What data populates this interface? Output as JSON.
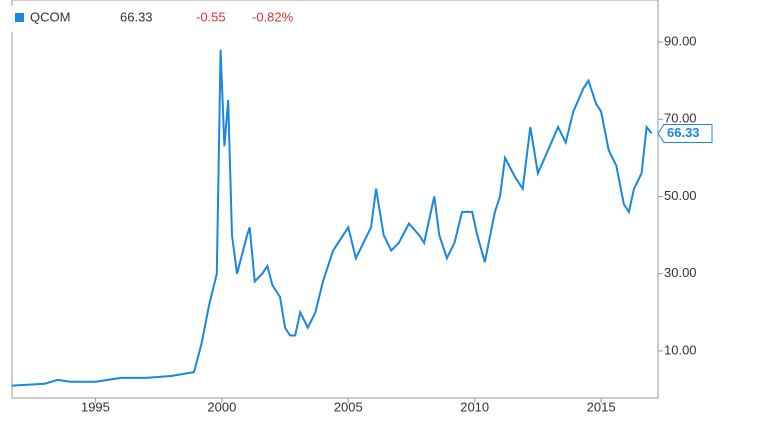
{
  "chart_data": {
    "type": "line",
    "quote": {
      "symbol": "QCOM",
      "price": 66.33,
      "change": -0.55,
      "change_pct": {
        "value": -0.82,
        "label": "-0.82%"
      }
    },
    "x": [
      1991.7,
      1993,
      1993.5,
      1994,
      1995,
      1996,
      1997,
      1998,
      1998.9,
      1999.2,
      1999.5,
      1999.8,
      1999.95,
      2000.1,
      2000.25,
      2000.4,
      2000.6,
      2000.8,
      2001.0,
      2001.1,
      2001.3,
      2001.6,
      2001.8,
      2002.0,
      2002.3,
      2002.5,
      2002.7,
      2002.9,
      2003.1,
      2003.4,
      2003.7,
      2004.0,
      2004.4,
      2004.8,
      2005.0,
      2005.3,
      2005.6,
      2005.9,
      2006.1,
      2006.4,
      2006.7,
      2007.0,
      2007.4,
      2007.8,
      2008.0,
      2008.4,
      2008.6,
      2008.9,
      2009.2,
      2009.5,
      2009.9,
      2010.1,
      2010.4,
      2010.8,
      2011.0,
      2011.2,
      2011.6,
      2011.9,
      2012.2,
      2012.5,
      2012.9,
      2013.3,
      2013.6,
      2013.9,
      2014.3,
      2014.5,
      2014.8,
      2015.0,
      2015.3,
      2015.6,
      2015.9,
      2016.1,
      2016.3,
      2016.6,
      2016.8,
      2017.0
    ],
    "series": [
      {
        "name": "QCOM",
        "color": "#1a87e0",
        "values": [
          1.0,
          1.5,
          2.5,
          2.0,
          2.0,
          3.0,
          3.0,
          3.5,
          4.5,
          12,
          22,
          30,
          88,
          63,
          75,
          40,
          30,
          35,
          40,
          42,
          28,
          30,
          32,
          27,
          24,
          16,
          14,
          14,
          20,
          16,
          20,
          28,
          36,
          40,
          42,
          34,
          38,
          42,
          52,
          40,
          36,
          38,
          43,
          40,
          38,
          50,
          40,
          34,
          38,
          46,
          46,
          40,
          33,
          46,
          50,
          60,
          55,
          52,
          68,
          56,
          62,
          68,
          64,
          72,
          78,
          80,
          74,
          72,
          62,
          58,
          48,
          46,
          52,
          56,
          68,
          66.33
        ]
      }
    ],
    "xlim": [
      1991.7,
      2017.25
    ],
    "xticks": [
      1995,
      2000,
      2005,
      2010,
      2015
    ],
    "ylim": [
      -2.2,
      100.9
    ],
    "yticks": [
      {
        "value": 10,
        "label": "10.00"
      },
      {
        "value": 30,
        "label": "30.00"
      },
      {
        "value": 50,
        "label": "50.00"
      },
      {
        "value": 70,
        "label": "70.00"
      },
      {
        "value": 90,
        "label": "90.00"
      }
    ]
  }
}
